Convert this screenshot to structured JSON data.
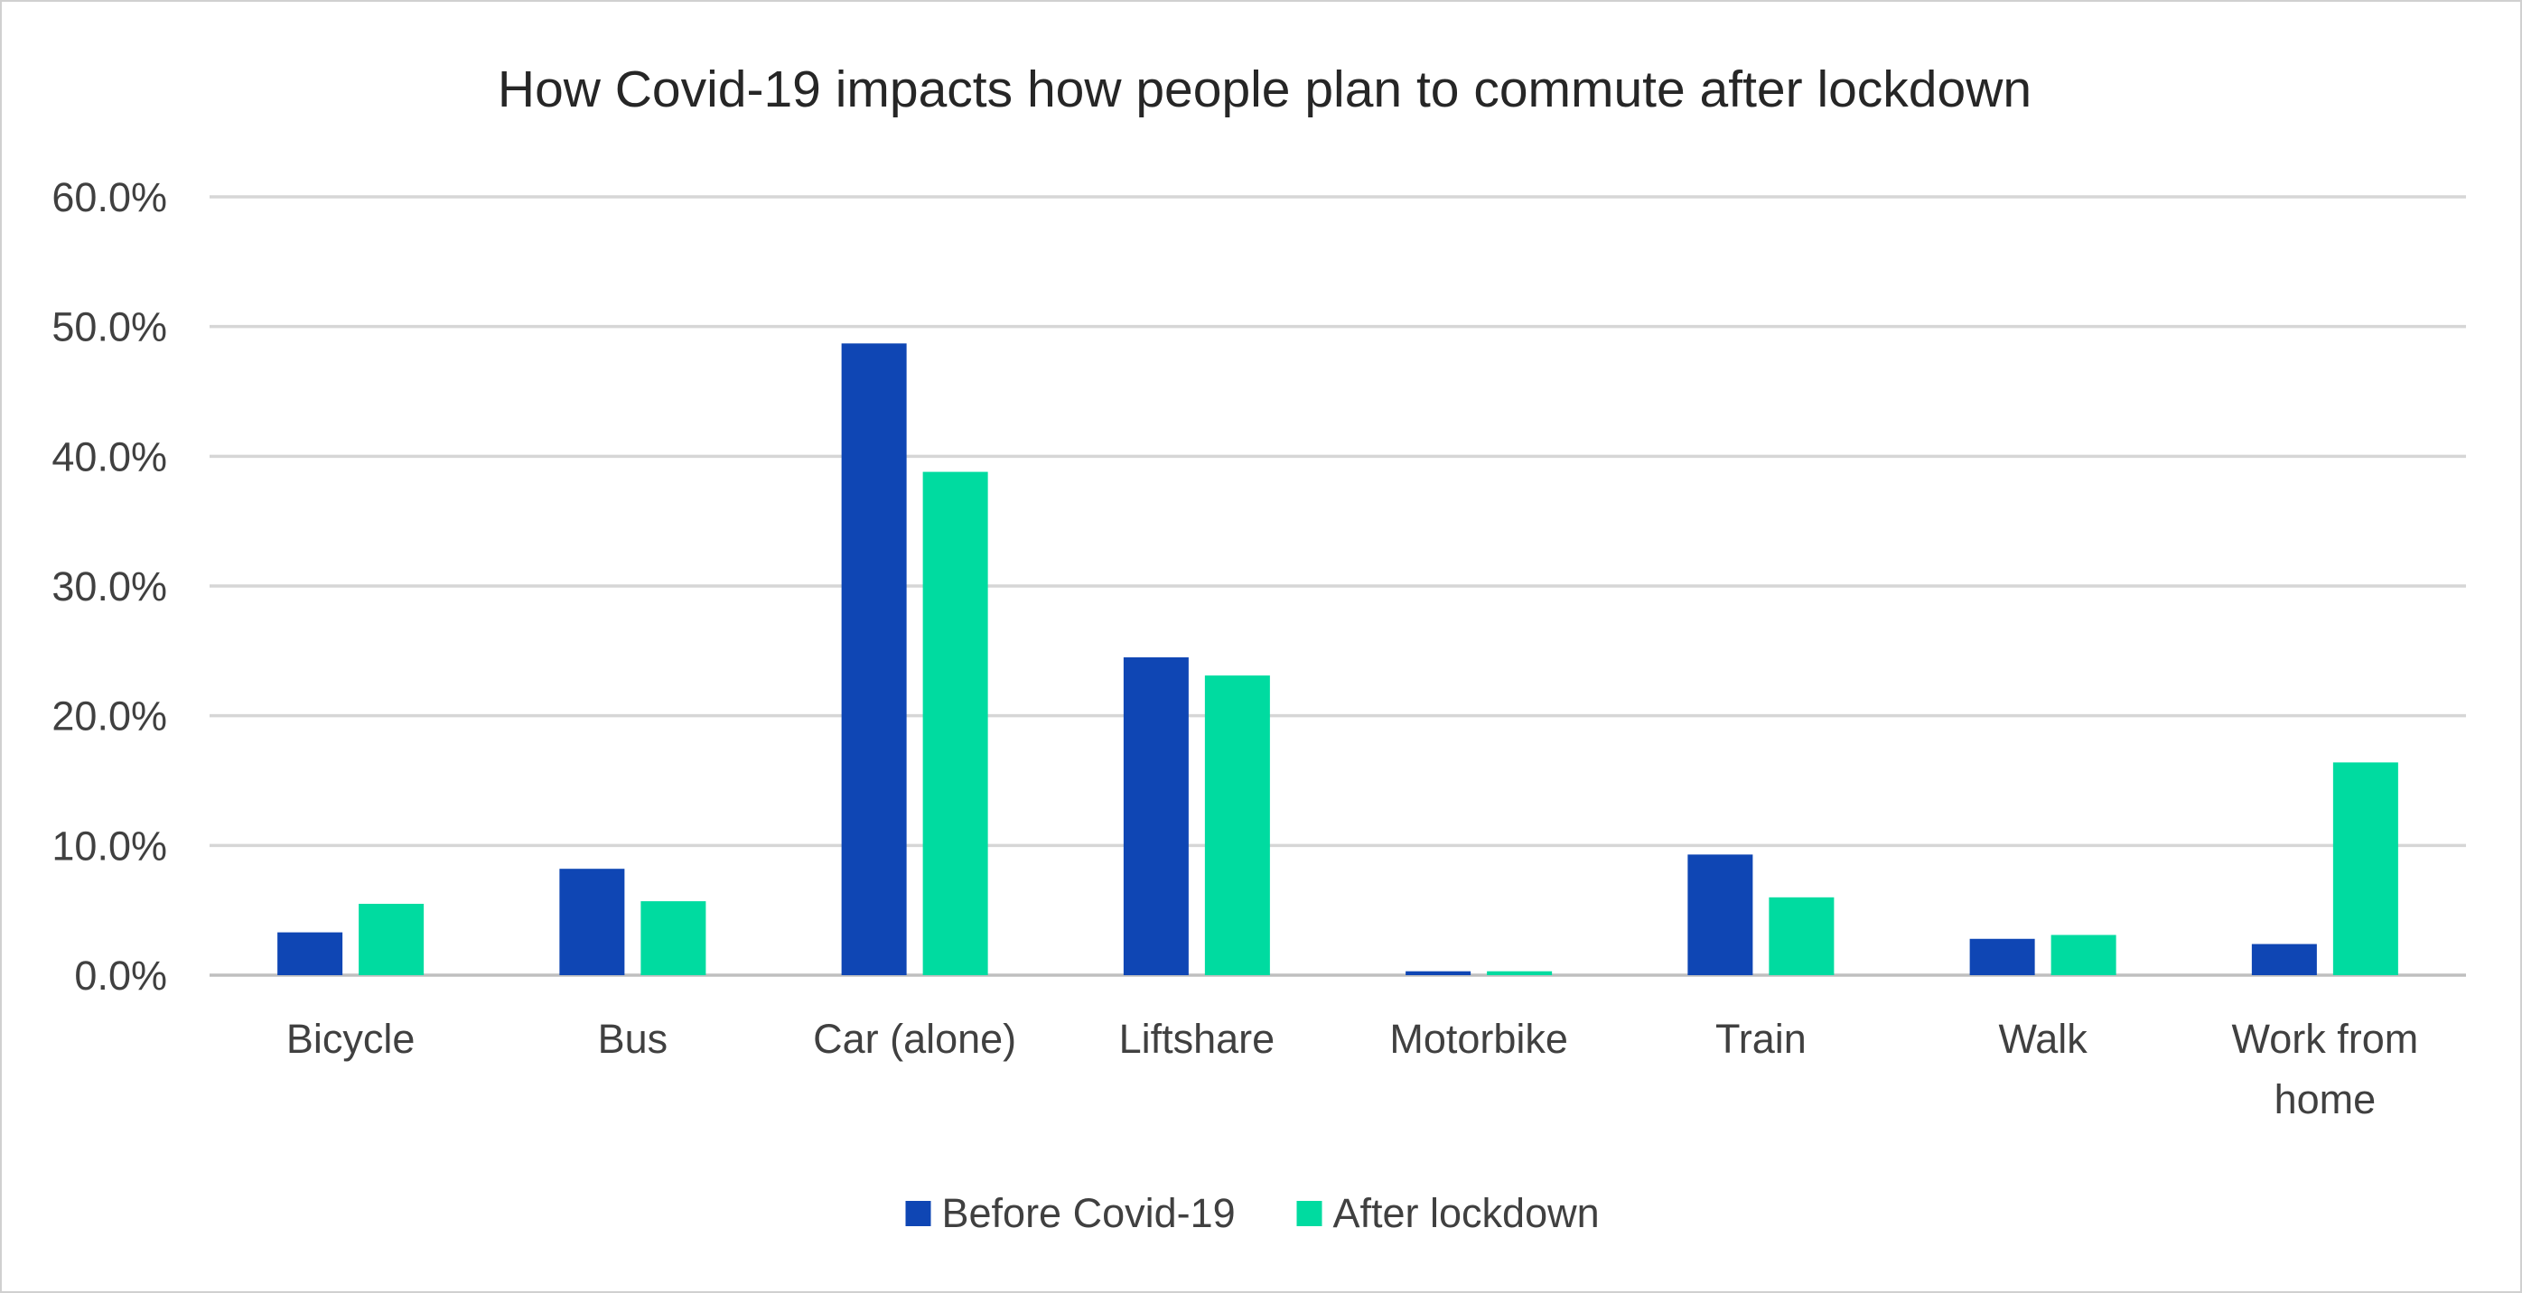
{
  "chart_data": {
    "type": "bar",
    "title": "How Covid-19 impacts how people plan to commute after lockdown",
    "xlabel": "",
    "ylabel": "",
    "ylim": [
      0,
      60
    ],
    "y_ticks": [
      "0.0%",
      "10.0%",
      "20.0%",
      "30.0%",
      "40.0%",
      "50.0%",
      "60.0%"
    ],
    "y_unit": "%",
    "grid": true,
    "legend_position": "bottom",
    "categories": [
      [
        "Bicycle"
      ],
      [
        "Bus"
      ],
      [
        "Car (alone)"
      ],
      [
        "Liftshare"
      ],
      [
        "Motorbike"
      ],
      [
        "Train"
      ],
      [
        "Walk"
      ],
      [
        "Work from",
        "home"
      ]
    ],
    "series": [
      {
        "name": "Before Covid-19",
        "color": "#0f46b4",
        "values": [
          3.3,
          8.2,
          48.7,
          24.5,
          0.3,
          9.3,
          2.8,
          2.4
        ]
      },
      {
        "name": "After lockdown",
        "color": "#00dba0",
        "values": [
          5.5,
          5.7,
          38.8,
          23.1,
          0.3,
          6.0,
          3.1,
          16.4
        ]
      }
    ]
  }
}
